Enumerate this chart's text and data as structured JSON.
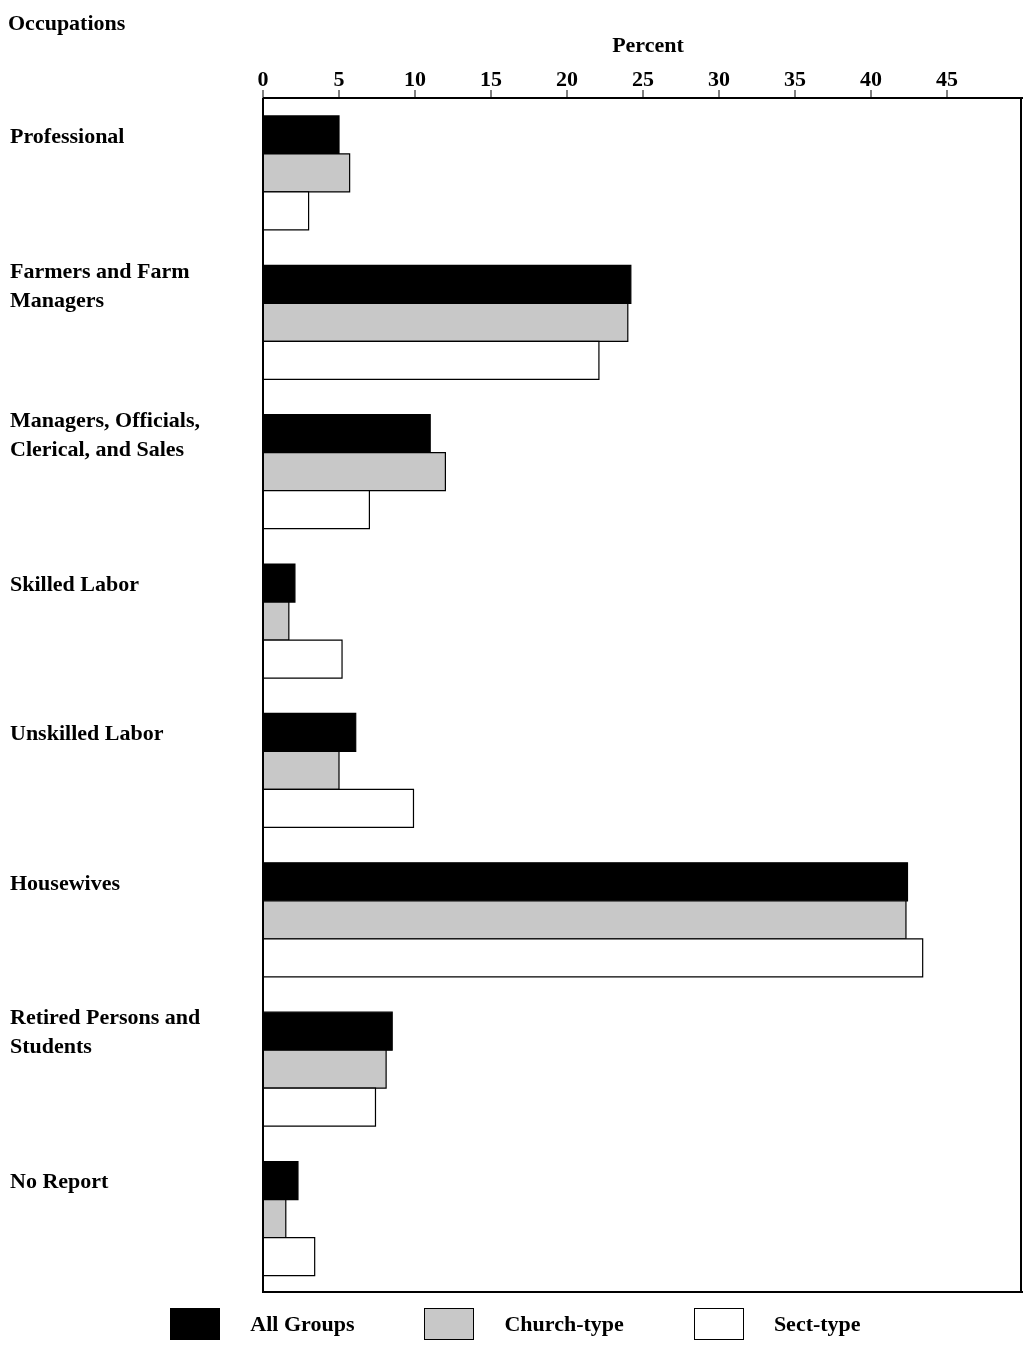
{
  "chart_data": {
    "type": "bar",
    "orientation": "horizontal",
    "xlabel": "Percent",
    "ylabel": "Occupations",
    "categories": [
      "Professional",
      "Farmers and Farm Managers",
      "Managers, Officials, Clerical, and Sales",
      "Skilled Labor",
      "Unskilled Labor",
      "Housewives",
      "Retired Persons and Students",
      "No Report"
    ],
    "series": [
      {
        "name": "All Groups",
        "color": "#000000",
        "values": [
          5.0,
          24.2,
          11.0,
          2.1,
          6.1,
          42.4,
          8.5,
          2.3
        ]
      },
      {
        "name": "Church-type",
        "color": "#c8c8c8",
        "values": [
          5.7,
          24.0,
          12.0,
          1.7,
          5.0,
          42.3,
          8.1,
          1.5
        ]
      },
      {
        "name": "Sect-type",
        "color": "#ffffff",
        "values": [
          3.0,
          22.1,
          7.0,
          5.2,
          9.9,
          43.4,
          7.4,
          3.4
        ]
      }
    ],
    "xlim": [
      0,
      50
    ],
    "xticks": [
      0,
      5,
      10,
      15,
      20,
      25,
      30,
      35,
      40,
      45
    ],
    "legend": "bottom"
  }
}
